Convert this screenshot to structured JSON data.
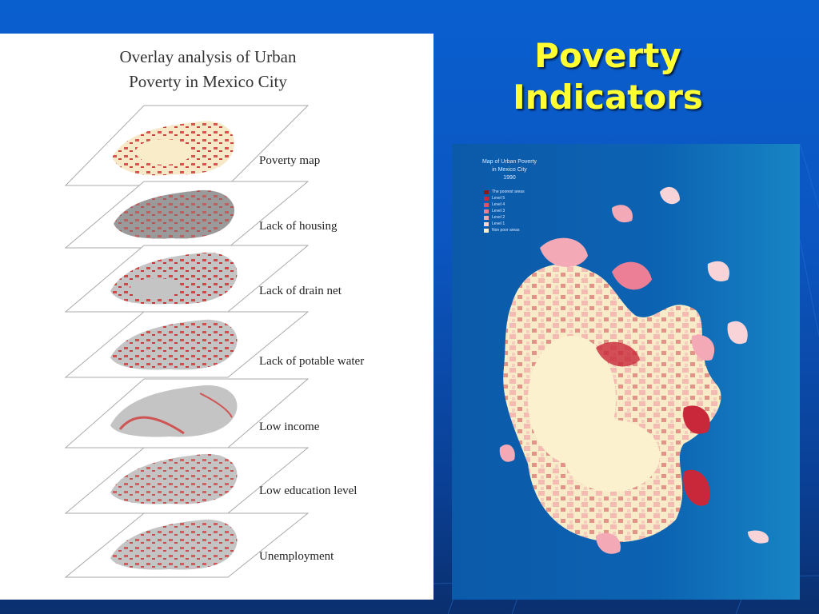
{
  "slide": {
    "title_line1": "Poverty",
    "title_line2": "Indicators",
    "title_color": "#ffff33",
    "background_color": "#0a55c0"
  },
  "overlay_figure": {
    "title_line1": "Overlay analysis of Urban",
    "title_line2": "Poverty in Mexico City",
    "layers": [
      {
        "label": "Poverty map"
      },
      {
        "label": "Lack of housing"
      },
      {
        "label": "Lack of drain net"
      },
      {
        "label": "Lack of potable water"
      },
      {
        "label": "Low income"
      },
      {
        "label": "Low education level"
      },
      {
        "label": "Unemployment"
      }
    ]
  },
  "poverty_map": {
    "title_line1": "Map of Urban Poverty",
    "title_line2": "in Mexico City",
    "title_line3": "1990",
    "legend": [
      {
        "label": "The poorest areas",
        "color": "#8b1a1a"
      },
      {
        "label": "Level 5",
        "color": "#c8283a"
      },
      {
        "label": "Level 4",
        "color": "#e0506a"
      },
      {
        "label": "Level 3",
        "color": "#ec7f95"
      },
      {
        "label": "Level 2",
        "color": "#f3a9b6"
      },
      {
        "label": "Level 1",
        "color": "#f8d3d8"
      },
      {
        "label": "Non poor areas",
        "color": "#fbf1cf"
      }
    ]
  }
}
